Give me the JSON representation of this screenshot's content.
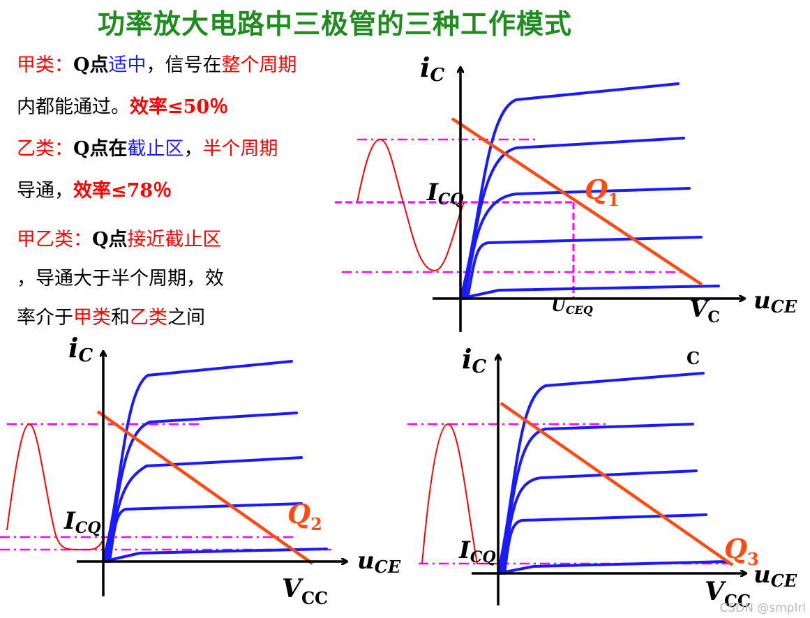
{
  "title": "功率放大电路中三极管的三种工作模式",
  "class_a": {
    "name": "甲类：",
    "q_prefix": "Q点",
    "q_state": "适中",
    "mid_text": "，信号在",
    "period": "整个周期",
    "line2_text": "内都能通过。",
    "efficiency": "效率≤50％"
  },
  "class_b": {
    "name": "乙类：",
    "q_prefix": "Q点在",
    "q_state": "截止区",
    "comma": "，",
    "period": "半个周期",
    "line2_text": "导通，",
    "efficiency": "效率≤78％"
  },
  "class_ab": {
    "name": "甲乙类：",
    "q_prefix": "Q点",
    "q_state": "接近截止区",
    "line2_text": "，导通大于半个周期，效",
    "line3_prefix": "率介于",
    "class_a_ref": "甲类",
    "and_text": "和",
    "class_b_ref": "乙类",
    "line3_suffix": "之间"
  },
  "graphs": {
    "class_a": {
      "y_axis_i": "i",
      "y_axis_sub": "C",
      "x_axis_u": "u",
      "x_axis_sub": "CE",
      "vc_v": "V",
      "vc_sub": "C",
      "icq_i": "I",
      "icq_sub": "CQ",
      "uceq_u": "U",
      "uceq_sub": "CEQ",
      "q_main": "Q",
      "q_sub": "1"
    },
    "class_ab": {
      "y_axis_i": "i",
      "y_axis_sub": "C",
      "x_axis_u": "u",
      "x_axis_sub": "CE",
      "vcc_v": "V",
      "vcc_sub": "CC",
      "icq_i": "I",
      "icq_sub": "CQ",
      "q_main": "Q",
      "q_sub": "2"
    },
    "class_b": {
      "y_axis_i": "i",
      "y_axis_sub": "C",
      "x_axis_u": "u",
      "x_axis_sub": "CE",
      "vcc_v": "V",
      "vcc_sub": "CC",
      "icq_i": "I",
      "icq_sub": "CQ",
      "q_main": "Q",
      "q_sub": "3",
      "stray_label": "C"
    }
  },
  "watermark": "CSDN @smplrl",
  "colors": {
    "title": "#1e8c1e",
    "emphasis_red": "#ff0000",
    "emphasis_blue": "#1a1aff",
    "curve_blue": "#1a1aff",
    "load_line": "#ff4a14",
    "guide_magenta": "#ff00ff",
    "signal_red": "#ff0000",
    "q_label": "#ff4a14"
  }
}
